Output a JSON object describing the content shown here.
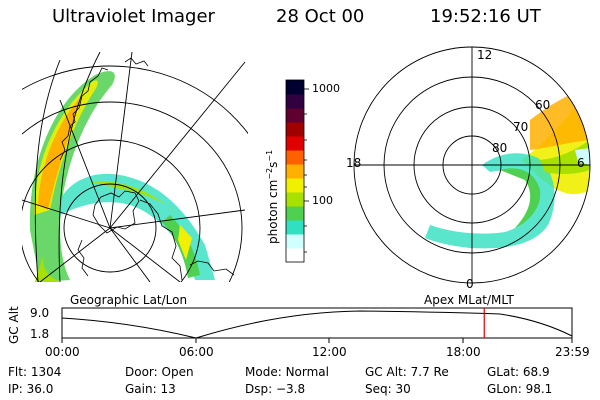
{
  "header": {
    "title": "Ultraviolet Imager",
    "date": "28 Oct 00",
    "time": "19:52:16 UT"
  },
  "colorbar": {
    "label_base": "photon cm",
    "label_exp1": "−2",
    "label_mid": "s",
    "label_exp2": "−1",
    "ticks": [
      "1000",
      "100"
    ],
    "colors": [
      "#ffffff",
      "#d0ffff",
      "#30e0c0",
      "#50d050",
      "#a8e000",
      "#f0f000",
      "#ffb000",
      "#ff6000",
      "#e00000",
      "#a00000",
      "#600030",
      "#300040",
      "#000030"
    ]
  },
  "polar_plot": {
    "mlt_labels": [
      "12",
      "18",
      "0",
      "6"
    ],
    "lat_labels": [
      "60",
      "70",
      "80"
    ]
  },
  "panels": {
    "left_caption": "Geographic Lat/Lon",
    "right_caption": "Apex MLat/MLT"
  },
  "timeline": {
    "ylabel": "GC Alt",
    "yticks": [
      "9.0",
      "1.8"
    ],
    "xticks": [
      "00:00",
      "06:00",
      "12:00",
      "18:00",
      "23:59"
    ],
    "marker_hours": 19.87
  },
  "status": {
    "flt_label": "Flt:",
    "flt_value": "1304",
    "ip_label": "IP:",
    "ip_value": "36.0",
    "door_label": "Door:",
    "door_value": "Open",
    "gain_label": "Gain:",
    "gain_value": "13",
    "mode_label": "Mode:",
    "mode_value": "Normal",
    "dsp_label": "Dsp:",
    "dsp_value": "−3.8",
    "gcalt_label": "GC Alt:",
    "gcalt_value": "7.7 Re",
    "seq_label": "Seq:",
    "seq_value": "30",
    "glat_label": "GLat:",
    "glat_value": "68.9",
    "glon_label": "GLon:",
    "glon_value": "98.1"
  }
}
